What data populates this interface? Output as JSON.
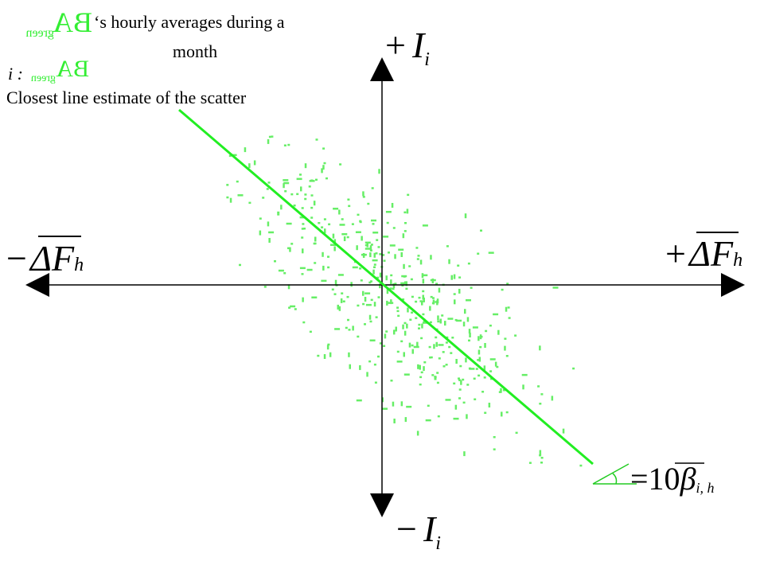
{
  "title": {
    "symbol": "BA",
    "subscript": "green",
    "line1": "‘s hourly averages during a",
    "line2": "month"
  },
  "legend": {
    "prefix": "i :",
    "symbol": "BA",
    "subscript": "green",
    "line_label": "Closest line estimate of the scatter"
  },
  "axes": {
    "top": {
      "sign": "+",
      "symbol": "I",
      "subscript": "i"
    },
    "bottom": {
      "sign": "−",
      "symbol": "I",
      "subscript": "i"
    },
    "left": {
      "sign": "−",
      "symbol": "ΔF",
      "subscript": "h"
    },
    "right": {
      "sign": "+",
      "symbol": "ΔF",
      "subscript": "h"
    }
  },
  "slope": {
    "text": "=10",
    "symbol": "β",
    "subscript": "i, h"
  }
}
